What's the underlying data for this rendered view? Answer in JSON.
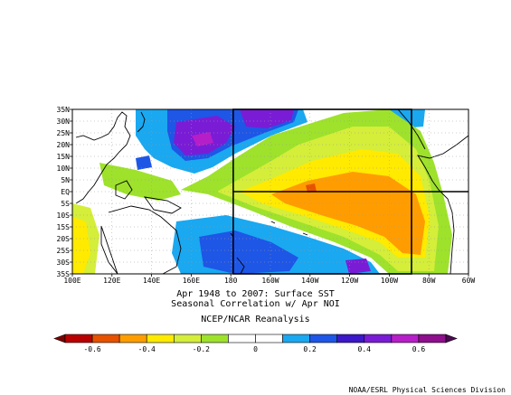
{
  "map": {
    "lat_labels": [
      "35N",
      "30N",
      "25N",
      "20N",
      "15N",
      "10N",
      "5N",
      "EQ",
      "5S",
      "10S",
      "15S",
      "20S",
      "25S",
      "30S",
      "35S"
    ],
    "lon_labels": [
      "100E",
      "120E",
      "140E",
      "160E",
      "180",
      "160W",
      "140W",
      "120W",
      "100W",
      "80W",
      "60W"
    ],
    "lon_extent": [
      "100E",
      "60W"
    ],
    "lat_extent": [
      "35S",
      "35N"
    ],
    "region_box": {
      "lon": [
        "180",
        "90W"
      ],
      "lat": [
        "35S",
        "35N"
      ],
      "equator_line": true
    },
    "field": "Seasonal Correlation of Surface SST with Apr NOI"
  },
  "caption": {
    "line1": "Apr 1948 to 2007: Surface SST",
    "line2": "Seasonal Correlation w/ Apr NOI",
    "line3": "NCEP/NCAR Reanalysis"
  },
  "colorbar": {
    "labels": [
      "-0.6",
      "-0.4",
      "-0.2",
      "0",
      "0.2",
      "0.4",
      "0.6"
    ],
    "colors": [
      "#b80000",
      "#e65200",
      "#ff9d00",
      "#ffea00",
      "#d4ee3a",
      "#9ee22c",
      "#ffffff",
      "#ffffff",
      "#1aa8f0",
      "#1e56e6",
      "#3c18c8",
      "#7a1cd6",
      "#b61ec8",
      "#8e0f8c"
    ]
  },
  "credit": "NOAA/ESRL Physical Sciences Division"
}
